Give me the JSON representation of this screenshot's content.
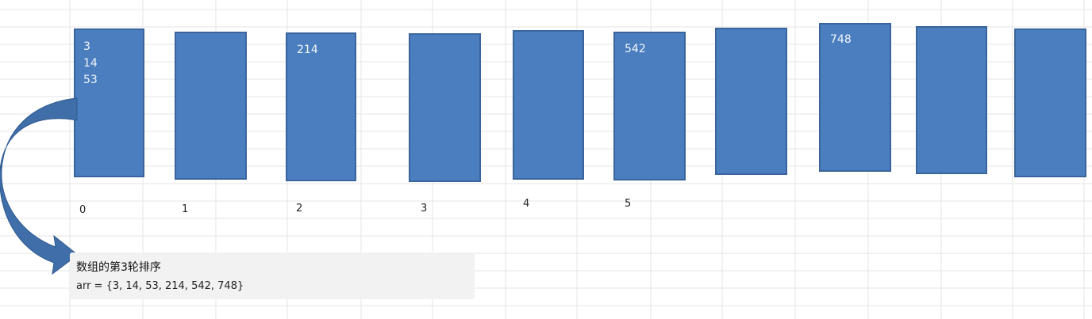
{
  "buckets": [
    {
      "values": [
        "3",
        "14",
        "53"
      ]
    },
    {
      "values": []
    },
    {
      "values": [
        "214"
      ]
    },
    {
      "values": []
    },
    {
      "values": []
    },
    {
      "values": [
        "542"
      ]
    },
    {
      "values": []
    },
    {
      "values": [
        "748"
      ]
    },
    {
      "values": []
    },
    {
      "values": []
    }
  ],
  "indices": [
    "0",
    "1",
    "2",
    "3",
    "4",
    "5"
  ],
  "note": {
    "title": "数组的第3轮排序",
    "body": "arr = {3, 14, 53, 214, 542, 748}"
  },
  "colors": {
    "bucket_fill": "#4a7ebf",
    "bucket_border": "#3a659c",
    "arrow_fill": "#3f6ea8",
    "grid_line": "#e4e4e4"
  }
}
